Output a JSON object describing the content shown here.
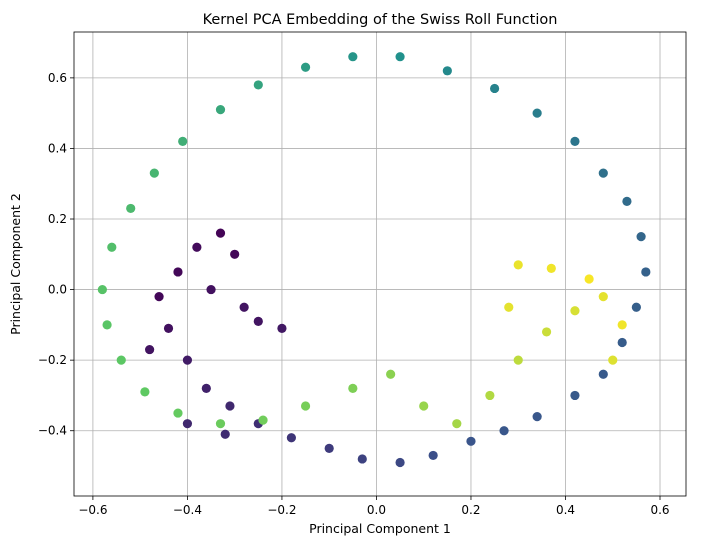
{
  "chart_data": {
    "type": "scatter",
    "title": "Kernel PCA Embedding of the Swiss Roll Function",
    "xlabel": "Principal Component 1",
    "ylabel": "Principal Component 2",
    "xlim": [
      -0.64,
      0.655
    ],
    "ylim": [
      -0.585,
      0.73
    ],
    "xticks": [
      -0.6,
      -0.4,
      -0.2,
      0.0,
      0.2,
      0.4,
      0.6
    ],
    "xtick_labels": [
      "−0.6",
      "−0.4",
      "−0.2",
      "0.0",
      "0.2",
      "0.4",
      "0.6"
    ],
    "yticks": [
      -0.4,
      -0.2,
      0.0,
      0.2,
      0.4,
      0.6
    ],
    "ytick_labels": [
      "−0.4",
      "−0.2",
      "0.0",
      "0.2",
      "0.4",
      "0.6"
    ],
    "grid": true,
    "colormap": "viridis",
    "colormap_stops": [
      "#440154",
      "#3b528b",
      "#21918c",
      "#5ec962",
      "#fde725"
    ],
    "points": [
      {
        "x": -0.42,
        "y": 0.05,
        "c": 0.02
      },
      {
        "x": -0.38,
        "y": 0.12,
        "c": 0.03
      },
      {
        "x": -0.33,
        "y": 0.16,
        "c": 0.01
      },
      {
        "x": -0.46,
        "y": -0.02,
        "c": 0.02
      },
      {
        "x": -0.3,
        "y": 0.1,
        "c": 0.02
      },
      {
        "x": -0.35,
        "y": 0.0,
        "c": 0.05
      },
      {
        "x": -0.28,
        "y": -0.05,
        "c": 0.06
      },
      {
        "x": -0.25,
        "y": -0.09,
        "c": 0.06
      },
      {
        "x": -0.2,
        "y": -0.11,
        "c": 0.07
      },
      {
        "x": -0.44,
        "y": -0.11,
        "c": 0.05
      },
      {
        "x": -0.48,
        "y": -0.17,
        "c": 0.06
      },
      {
        "x": -0.4,
        "y": -0.2,
        "c": 0.08
      },
      {
        "x": -0.36,
        "y": -0.28,
        "c": 0.1
      },
      {
        "x": -0.31,
        "y": -0.33,
        "c": 0.12
      },
      {
        "x": -0.25,
        "y": -0.38,
        "c": 0.14
      },
      {
        "x": -0.18,
        "y": -0.42,
        "c": 0.16
      },
      {
        "x": -0.1,
        "y": -0.45,
        "c": 0.18
      },
      {
        "x": -0.03,
        "y": -0.48,
        "c": 0.2
      },
      {
        "x": 0.05,
        "y": -0.49,
        "c": 0.22
      },
      {
        "x": -0.4,
        "y": -0.38,
        "c": 0.12
      },
      {
        "x": -0.32,
        "y": -0.41,
        "c": 0.13
      },
      {
        "x": 0.12,
        "y": -0.47,
        "c": 0.24
      },
      {
        "x": 0.2,
        "y": -0.43,
        "c": 0.26
      },
      {
        "x": 0.27,
        "y": -0.4,
        "c": 0.27
      },
      {
        "x": 0.34,
        "y": -0.36,
        "c": 0.27
      },
      {
        "x": 0.42,
        "y": -0.3,
        "c": 0.28
      },
      {
        "x": 0.48,
        "y": -0.24,
        "c": 0.28
      },
      {
        "x": 0.52,
        "y": -0.15,
        "c": 0.29
      },
      {
        "x": 0.55,
        "y": -0.05,
        "c": 0.3
      },
      {
        "x": 0.57,
        "y": 0.05,
        "c": 0.31
      },
      {
        "x": 0.56,
        "y": 0.15,
        "c": 0.33
      },
      {
        "x": 0.53,
        "y": 0.25,
        "c": 0.35
      },
      {
        "x": 0.48,
        "y": 0.33,
        "c": 0.37
      },
      {
        "x": 0.42,
        "y": 0.42,
        "c": 0.39
      },
      {
        "x": 0.34,
        "y": 0.5,
        "c": 0.42
      },
      {
        "x": 0.25,
        "y": 0.57,
        "c": 0.44
      },
      {
        "x": 0.15,
        "y": 0.62,
        "c": 0.47
      },
      {
        "x": 0.05,
        "y": 0.66,
        "c": 0.5
      },
      {
        "x": -0.05,
        "y": 0.66,
        "c": 0.52
      },
      {
        "x": -0.15,
        "y": 0.63,
        "c": 0.55
      },
      {
        "x": -0.25,
        "y": 0.58,
        "c": 0.58
      },
      {
        "x": -0.33,
        "y": 0.51,
        "c": 0.6
      },
      {
        "x": -0.41,
        "y": 0.42,
        "c": 0.63
      },
      {
        "x": -0.47,
        "y": 0.33,
        "c": 0.66
      },
      {
        "x": -0.52,
        "y": 0.23,
        "c": 0.68
      },
      {
        "x": -0.56,
        "y": 0.12,
        "c": 0.7
      },
      {
        "x": -0.58,
        "y": 0.0,
        "c": 0.72
      },
      {
        "x": -0.57,
        "y": -0.1,
        "c": 0.73
      },
      {
        "x": -0.54,
        "y": -0.2,
        "c": 0.74
      },
      {
        "x": -0.49,
        "y": -0.29,
        "c": 0.75
      },
      {
        "x": -0.42,
        "y": -0.35,
        "c": 0.76
      },
      {
        "x": -0.33,
        "y": -0.38,
        "c": 0.77
      },
      {
        "x": -0.24,
        "y": -0.37,
        "c": 0.78
      },
      {
        "x": -0.15,
        "y": -0.33,
        "c": 0.79
      },
      {
        "x": -0.05,
        "y": -0.28,
        "c": 0.8
      },
      {
        "x": 0.03,
        "y": -0.24,
        "c": 0.82
      },
      {
        "x": 0.1,
        "y": -0.33,
        "c": 0.84
      },
      {
        "x": 0.17,
        "y": -0.38,
        "c": 0.86
      },
      {
        "x": 0.24,
        "y": -0.3,
        "c": 0.88
      },
      {
        "x": 0.3,
        "y": -0.2,
        "c": 0.9
      },
      {
        "x": 0.36,
        "y": -0.12,
        "c": 0.92
      },
      {
        "x": 0.42,
        "y": -0.06,
        "c": 0.94
      },
      {
        "x": 0.48,
        "y": -0.02,
        "c": 0.96
      },
      {
        "x": 0.52,
        "y": -0.1,
        "c": 0.98
      },
      {
        "x": 0.45,
        "y": 0.03,
        "c": 0.99
      },
      {
        "x": 0.37,
        "y": 0.06,
        "c": 0.98
      },
      {
        "x": 0.3,
        "y": 0.07,
        "c": 0.97
      },
      {
        "x": 0.28,
        "y": -0.05,
        "c": 0.96
      },
      {
        "x": 0.5,
        "y": -0.2,
        "c": 0.95
      }
    ]
  }
}
